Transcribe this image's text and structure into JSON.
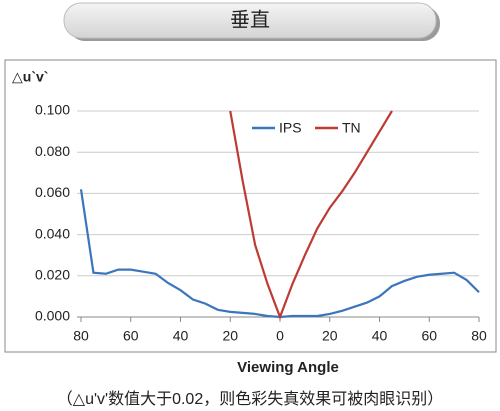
{
  "header": {
    "title": "垂直"
  },
  "caption": "（△u'v'数值大于0.02，则色彩失真效果可被肉眼识别）",
  "chart_data": {
    "type": "line",
    "y_label": "△u`v`",
    "x_label": "Viewing Angle",
    "xlim": [
      -80,
      80
    ],
    "xticks": [
      {
        "value": -80,
        "label": "80"
      },
      {
        "value": -60,
        "label": "60"
      },
      {
        "value": -40,
        "label": "40"
      },
      {
        "value": -20,
        "label": "20"
      },
      0,
      20,
      40,
      60,
      80
    ],
    "ylim": [
      0,
      0.1
    ],
    "yticks": [
      {
        "value": 0,
        "label": "0.000"
      },
      {
        "value": 0.02,
        "label": "0.020"
      },
      {
        "value": 0.04,
        "label": "0.040"
      },
      {
        "value": 0.06,
        "label": "0.060"
      },
      {
        "value": 0.08,
        "label": "0.080"
      },
      {
        "value": 0.1,
        "label": "0.100"
      }
    ],
    "grid": true,
    "legend": "upper center",
    "series": [
      {
        "name": "IPS",
        "color": "#3b76bd",
        "x": [
          -80,
          -75,
          -70,
          -65,
          -60,
          -55,
          -50,
          -45,
          -40,
          -35,
          -30,
          -25,
          -20,
          -15,
          -10,
          -5,
          0,
          5,
          10,
          15,
          20,
          25,
          30,
          35,
          40,
          45,
          50,
          55,
          60,
          65,
          70,
          75,
          80
        ],
        "values": [
          0.062,
          0.0215,
          0.021,
          0.023,
          0.023,
          0.022,
          0.021,
          0.0165,
          0.013,
          0.0085,
          0.0065,
          0.0035,
          0.0025,
          0.002,
          0.0015,
          0.0005,
          0,
          0.0005,
          0.0005,
          0.0005,
          0.0015,
          0.003,
          0.005,
          0.007,
          0.01,
          0.015,
          0.0175,
          0.0195,
          0.0205,
          0.021,
          0.0215,
          0.018,
          0.012
        ]
      },
      {
        "name": "TN",
        "color": "#be3a34",
        "x": [
          -20,
          -15,
          -10,
          -5,
          0,
          5,
          10,
          15,
          20,
          25,
          30,
          35,
          40,
          45
        ],
        "values": [
          0.1,
          0.066,
          0.035,
          0.016,
          0,
          0.016,
          0.03,
          0.043,
          0.053,
          0.061,
          0.07,
          0.08,
          0.09,
          0.1
        ]
      }
    ]
  }
}
